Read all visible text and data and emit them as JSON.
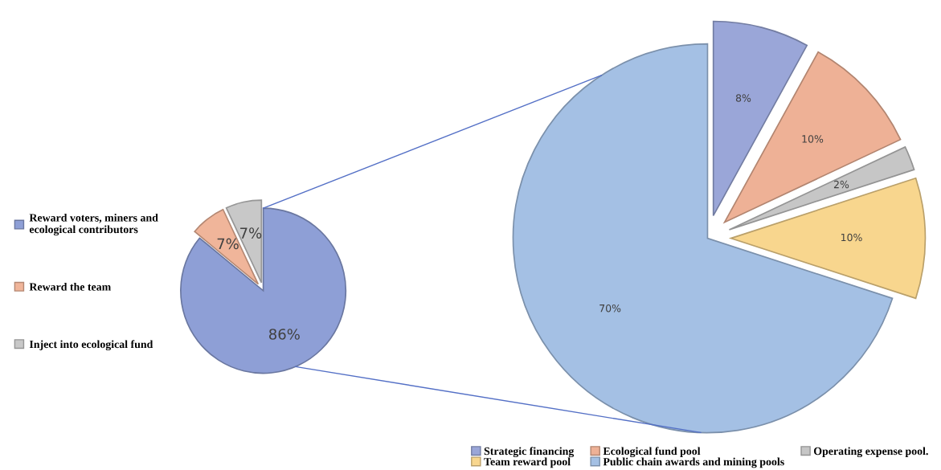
{
  "chart_data": [
    {
      "type": "pie",
      "categories": [
        "Reward voters, miners and\necological contributors",
        "Reward the team",
        "Inject into ecological fund"
      ],
      "values": [
        86,
        7,
        7
      ],
      "colors": [
        "#8e9fd6",
        "#f0b59a",
        "#c8c8c8"
      ],
      "value_labels": [
        "86%",
        "7%",
        "7%"
      ],
      "legend": "left"
    },
    {
      "type": "pie",
      "categories": [
        "Strategic financing",
        "Ecological fund pool",
        "Operating expense pool.",
        "Team reward pool",
        "Public chain awards and mining pools"
      ],
      "values": [
        8,
        10,
        2,
        10,
        70
      ],
      "colors": [
        "#9aa6d8",
        "#eeb196",
        "#c6c6c6",
        "#f8d68e",
        "#a4c0e4"
      ],
      "value_labels": [
        "8%",
        "10%",
        "2%",
        "10%",
        "70%"
      ],
      "legend": "bottom right"
    }
  ]
}
